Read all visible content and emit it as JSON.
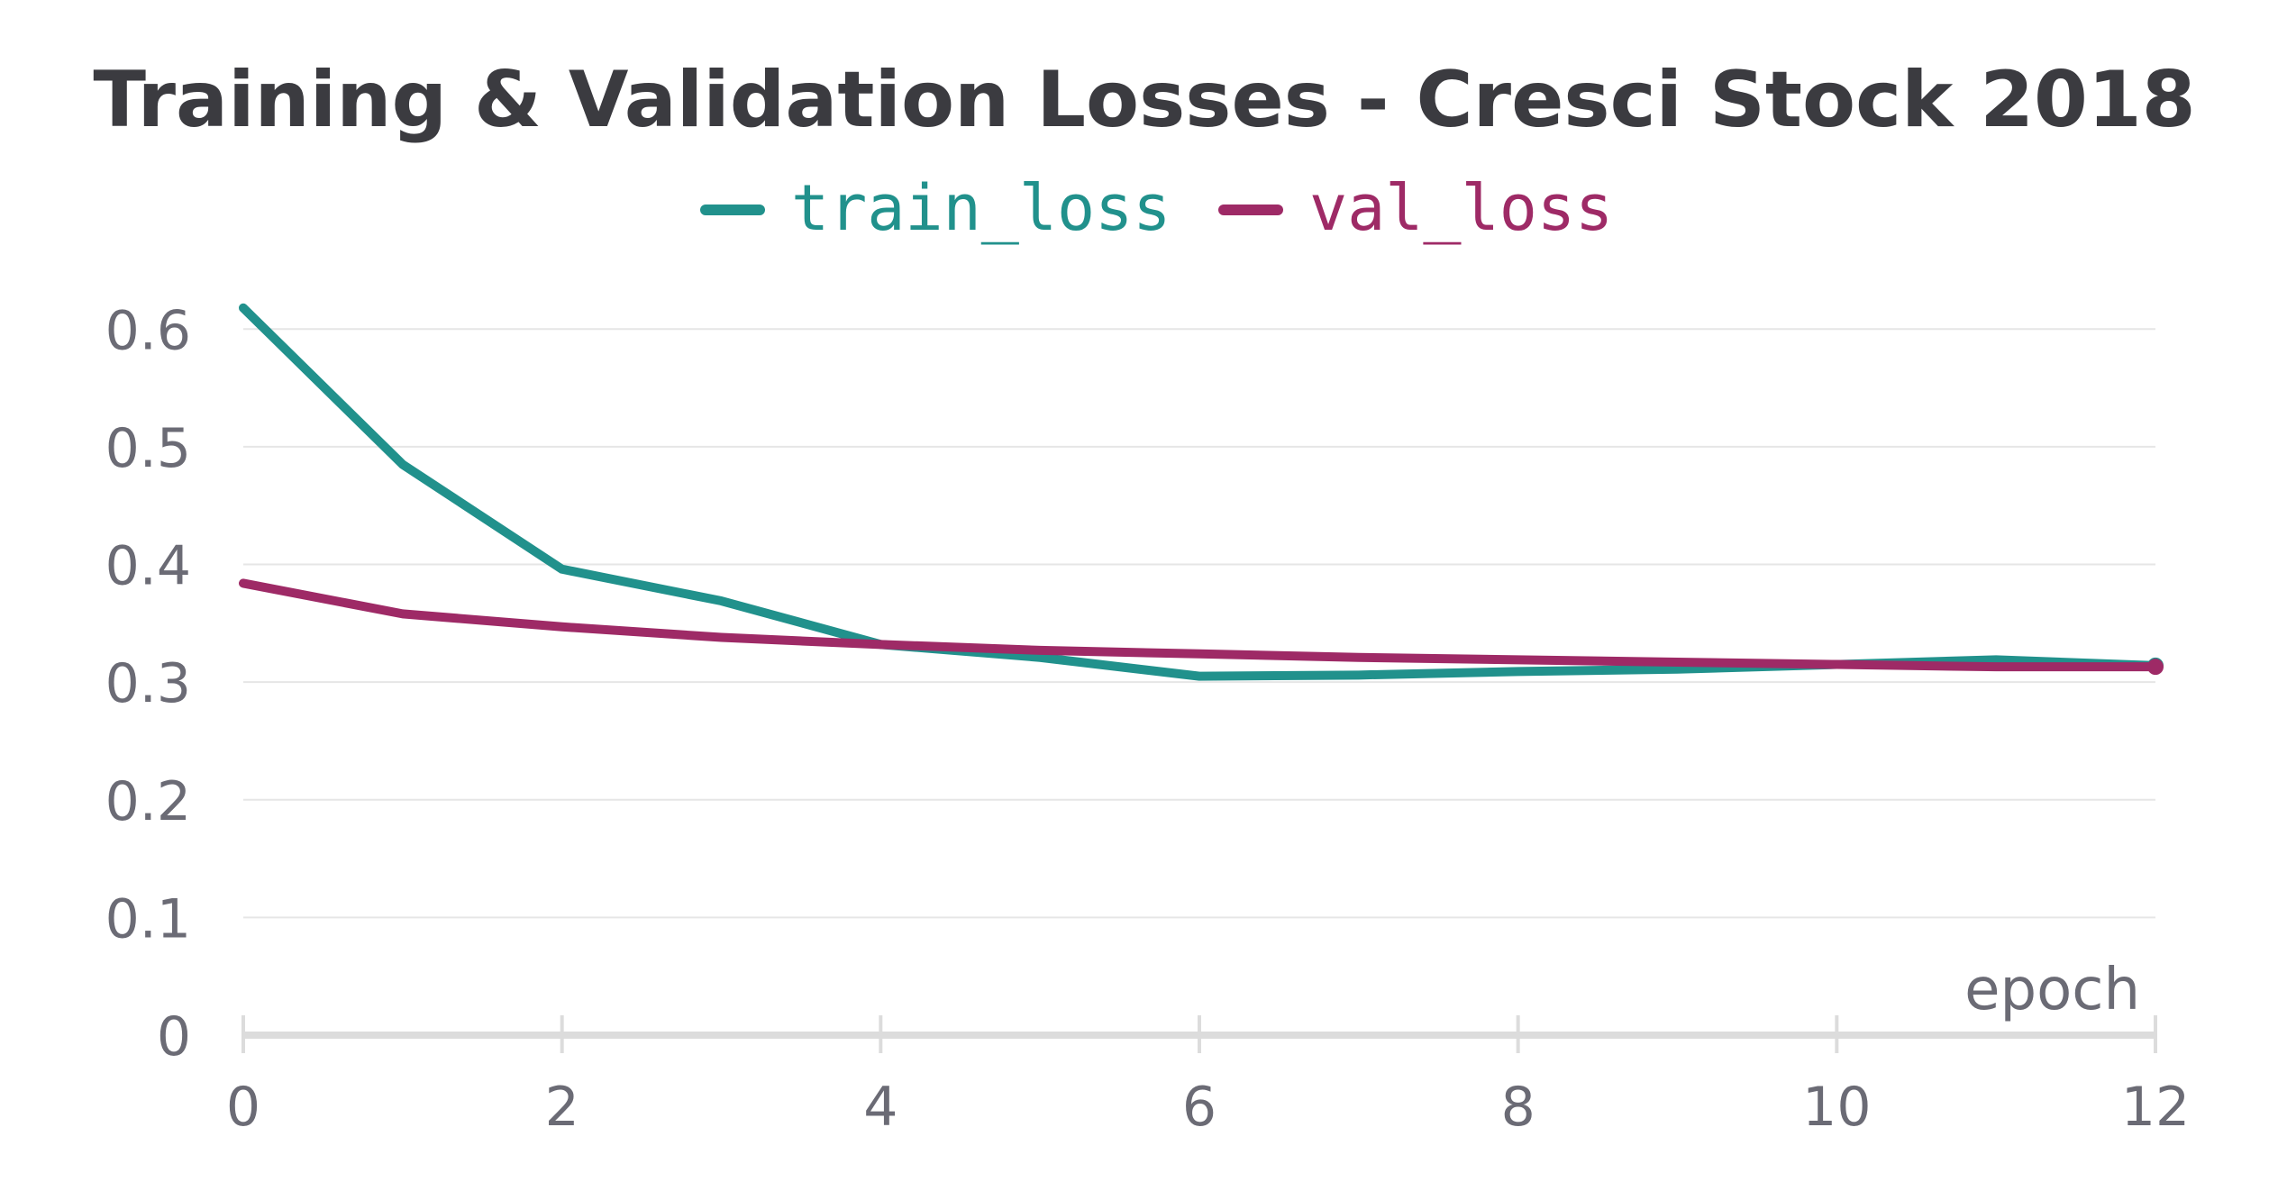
{
  "chart_data": {
    "type": "line",
    "title": "Training & Validation Losses - Cresci Stock 2018",
    "xlabel": "epoch",
    "ylabel": "",
    "xlim": [
      0,
      12
    ],
    "ylim": [
      0,
      0.65
    ],
    "xticks": [
      0,
      2,
      4,
      6,
      8,
      10,
      12
    ],
    "xtick_labels": [
      "0",
      "2",
      "4",
      "6",
      "8",
      "10",
      "12"
    ],
    "yticks": [
      0,
      0.1,
      0.2,
      0.3,
      0.4,
      0.5,
      0.6
    ],
    "ytick_labels": [
      "0",
      "0.1",
      "0.2",
      "0.3",
      "0.4",
      "0.5",
      "0.6"
    ],
    "grid": true,
    "legend_position": "top-center",
    "x": [
      0,
      1,
      2,
      3,
      4,
      5,
      6,
      7,
      8,
      9,
      10,
      11,
      12
    ],
    "series": [
      {
        "name": "train_loss",
        "color": "#21918c",
        "values": [
          0.618,
          0.485,
          0.396,
          0.369,
          0.332,
          0.321,
          0.305,
          0.306,
          0.309,
          0.311,
          0.315,
          0.319,
          0.314
        ]
      },
      {
        "name": "val_loss",
        "color": "#9e2a66",
        "values": [
          0.384,
          0.358,
          0.347,
          0.338,
          0.332,
          0.327,
          0.324,
          0.321,
          0.319,
          0.317,
          0.315,
          0.313,
          0.313
        ]
      }
    ],
    "colors": {
      "title": "#3b3b40",
      "tick_label": "#6b6b75",
      "gridline": "#e6e6e6",
      "axis": "#dcdcdc"
    }
  }
}
